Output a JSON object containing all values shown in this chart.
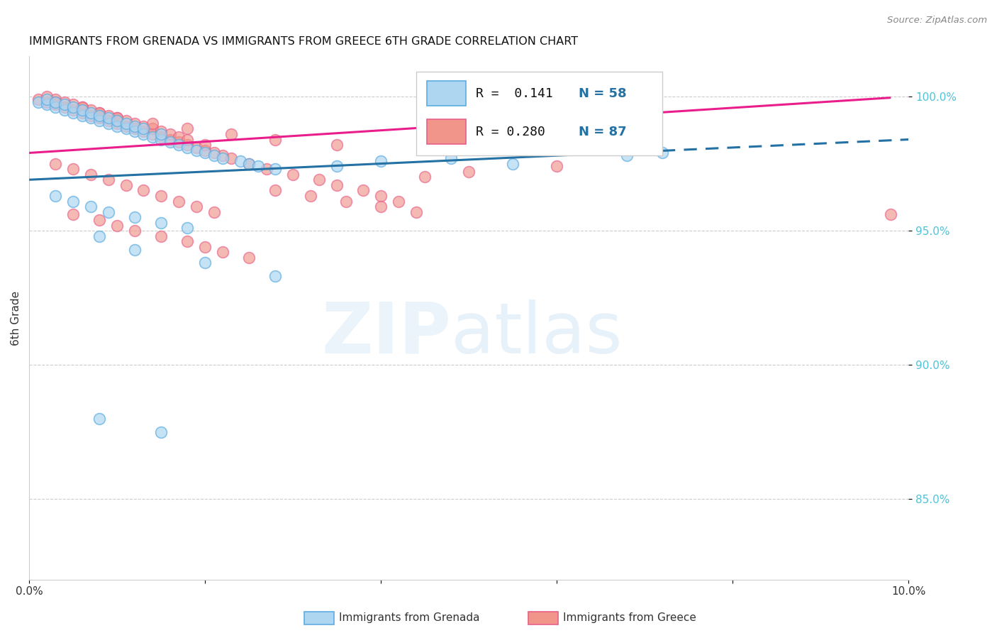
{
  "title": "IMMIGRANTS FROM GRENADA VS IMMIGRANTS FROM GREECE 6TH GRADE CORRELATION CHART",
  "source": "Source: ZipAtlas.com",
  "ylabel": "6th Grade",
  "xlim": [
    0.0,
    0.1
  ],
  "ylim": [
    0.82,
    1.015
  ],
  "color_grenada_face": "#AED6F1",
  "color_grenada_edge": "#5DADE2",
  "color_greece_face": "#F1948A",
  "color_greece_edge": "#E8608A",
  "line_color_grenada": "#2471A3",
  "line_color_greece": "#E91E8C",
  "background_color": "#ffffff",
  "watermark_zip_color": "#D5E8F5",
  "watermark_atlas_color": "#BDD7EE",
  "ytick_color": "#4FC3D7",
  "legend_r1": "R =  0.141",
  "legend_n1": "N = 58",
  "legend_r2": "R = 0.280",
  "legend_n2": "N = 87",
  "grenada_r": 0.141,
  "grenada_n": 58,
  "greece_r": 0.28,
  "greece_n": 87
}
